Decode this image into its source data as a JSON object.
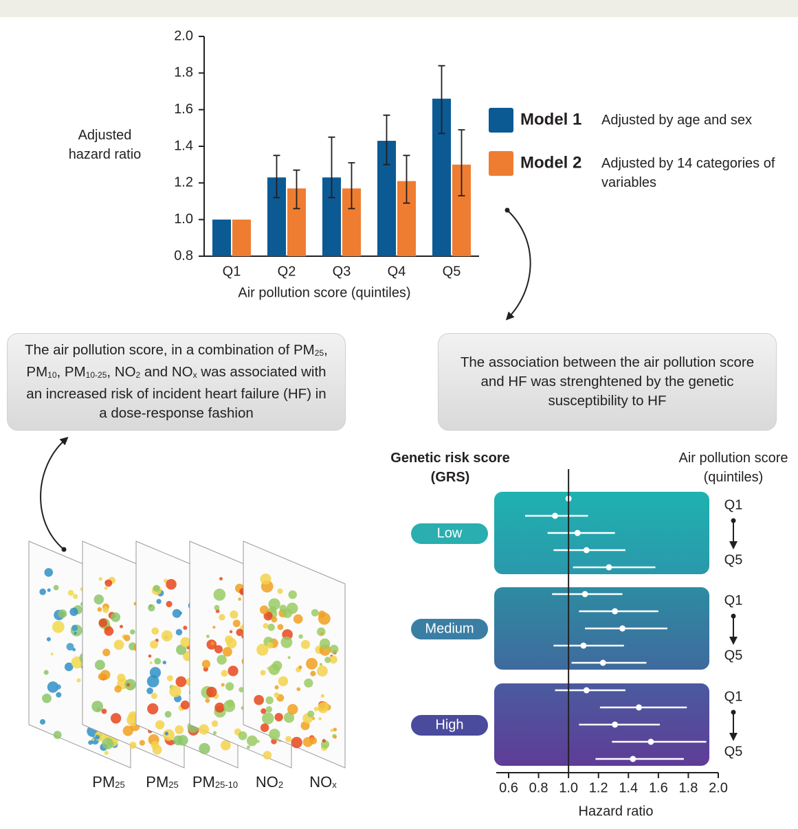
{
  "chart_data": [
    {
      "type": "bar",
      "ylabel": "Adjusted hazard ratio",
      "xlabel": "Air pollution score (quintiles)",
      "categories": [
        "Q1",
        "Q2",
        "Q3",
        "Q4",
        "Q5"
      ],
      "series": [
        {
          "name": "Model 1",
          "description": "Adjusted by age and sex",
          "color": "#0b5a94",
          "values": [
            1.0,
            1.23,
            1.23,
            1.43,
            1.66
          ],
          "lower": [
            null,
            1.12,
            1.12,
            1.3,
            1.47
          ],
          "upper": [
            null,
            1.35,
            1.45,
            1.57,
            1.84
          ]
        },
        {
          "name": "Model 2",
          "description": "Adjusted by 14 categories of variables",
          "color": "#ef7d31",
          "values": [
            1.0,
            1.17,
            1.17,
            1.21,
            1.3
          ],
          "lower": [
            null,
            1.06,
            1.06,
            1.09,
            1.13
          ],
          "upper": [
            null,
            1.27,
            1.31,
            1.35,
            1.49
          ]
        }
      ],
      "ylim": [
        0.8,
        2
      ],
      "yticks": [
        0.8,
        {
          "value": 1,
          "label": "1.0"
        },
        1.2,
        1.4,
        1.6,
        1.8,
        {
          "value": 2,
          "label": "2.0"
        }
      ]
    },
    {
      "type": "forest",
      "ylabel": "Genetic risk score (GRS)",
      "right_label": "Air pollution score (quintiles)",
      "xlabel": "Hazard ratio",
      "row_labels": [
        "Q1",
        "Q5"
      ],
      "reference": 1,
      "xlim": [
        0.6,
        2
      ],
      "xticks": [
        0.6,
        0.8,
        {
          "value": 1,
          "label": "1.0"
        },
        1.2,
        1.4,
        1.6,
        1.8,
        {
          "value": 2,
          "label": "2.0"
        }
      ],
      "groups": [
        {
          "name": "Low",
          "color": "#2aaeb0",
          "colors": [
            "#1fb2b0",
            "#2a98ab"
          ],
          "values": [
            1.0,
            0.91,
            1.06,
            1.12,
            1.27
          ],
          "lower": [
            null,
            0.71,
            0.86,
            0.9,
            1.03
          ],
          "upper": [
            null,
            1.13,
            1.31,
            1.38,
            1.58
          ]
        },
        {
          "name": "Medium",
          "color": "#3a7ea4",
          "colors": [
            "#2d8ca2",
            "#3f6a9d"
          ],
          "values": [
            1.11,
            1.31,
            1.36,
            1.1,
            1.23
          ],
          "lower": [
            0.89,
            1.07,
            1.11,
            0.9,
            1.02
          ],
          "upper": [
            1.36,
            1.6,
            1.66,
            1.37,
            1.52
          ]
        },
        {
          "name": "High",
          "color": "#4a4b9c",
          "colors": [
            "#4a5b9f",
            "#5f3c97"
          ],
          "values": [
            1.12,
            1.47,
            1.31,
            1.55,
            1.43
          ],
          "lower": [
            0.91,
            1.21,
            1.07,
            1.29,
            1.18
          ],
          "upper": [
            1.38,
            1.79,
            1.61,
            1.92,
            1.77
          ]
        }
      ]
    }
  ],
  "left_box": {
    "runs": [
      {
        "text": "The air pollution score, in a combination of PM",
        "sub": false
      },
      {
        "text": "25",
        "sub": true
      },
      {
        "text": ", PM",
        "sub": false
      },
      {
        "text": "10",
        "sub": true
      },
      {
        "text": ", PM",
        "sub": false
      },
      {
        "text": "10-25",
        "sub": true
      },
      {
        "text": ", NO",
        "sub": false
      },
      {
        "text": "2",
        "sub": true
      },
      {
        "text": " and NO",
        "sub": false
      },
      {
        "text": "x",
        "sub": true
      },
      {
        "text": " was associated with an increased risk of incident heart failure (HF) in a dose-response fashion",
        "sub": false
      }
    ]
  },
  "right_box": {
    "text": "The association between the air pollution score and HF was strenghtened by the genetic susceptibility to HF"
  },
  "maps": {
    "labels": [
      {
        "base": "PM",
        "sub": "25"
      },
      {
        "base": "PM",
        "sub": "25"
      },
      {
        "base": "PM",
        "sub": "25-10"
      },
      {
        "base": "NO",
        "sub": "2"
      },
      {
        "base": "NO",
        "sub": "x"
      }
    ]
  }
}
